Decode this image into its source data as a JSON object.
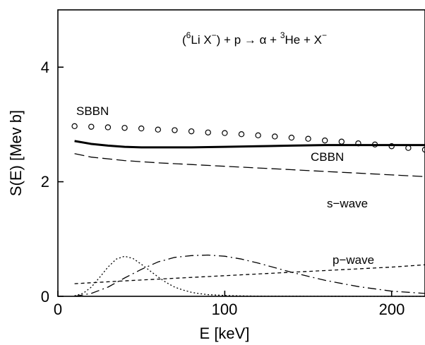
{
  "chart_data": {
    "type": "line",
    "title": "",
    "xlabel": "E [keV]",
    "ylabel": "S(E) [Mev b]",
    "xlim": [
      0,
      220
    ],
    "ylim": [
      0,
      5
    ],
    "x_ticks": [
      0,
      100,
      200
    ],
    "x_tick_labels": [
      "0",
      "100",
      "200"
    ],
    "y_ticks": [
      0,
      2,
      4
    ],
    "y_tick_labels": [
      "0",
      "2",
      "4"
    ],
    "grid": false,
    "reaction": {
      "pre": "(",
      "sup1": "6",
      "mid1": "Li X",
      "sup2": "−",
      "mid2": ") + p  →  α + ",
      "sup3": "3",
      "tail": "He + X",
      "sup4": "−"
    },
    "series": [
      {
        "name": "SBBN",
        "style": "circles",
        "color": "#000000",
        "x": [
          10,
          20,
          30,
          40,
          50,
          60,
          70,
          80,
          90,
          100,
          110,
          120,
          130,
          140,
          150,
          160,
          170,
          180,
          190,
          200,
          210,
          220
        ],
        "y": [
          2.97,
          2.96,
          2.95,
          2.94,
          2.93,
          2.91,
          2.9,
          2.88,
          2.86,
          2.85,
          2.83,
          2.81,
          2.79,
          2.77,
          2.75,
          2.72,
          2.7,
          2.67,
          2.65,
          2.62,
          2.59,
          2.56
        ]
      },
      {
        "name": "CBBN",
        "style": "solid-bold",
        "color": "#000000",
        "x": [
          10,
          20,
          30,
          40,
          50,
          60,
          80,
          100,
          120,
          140,
          160,
          180,
          200,
          220
        ],
        "y": [
          2.71,
          2.66,
          2.63,
          2.61,
          2.6,
          2.6,
          2.6,
          2.61,
          2.62,
          2.63,
          2.64,
          2.64,
          2.64,
          2.64
        ]
      },
      {
        "name": "s−wave",
        "style": "dashed",
        "color": "#000000",
        "x": [
          10,
          20,
          40,
          60,
          80,
          100,
          120,
          140,
          160,
          180,
          200,
          220
        ],
        "y": [
          2.49,
          2.43,
          2.37,
          2.33,
          2.3,
          2.27,
          2.24,
          2.21,
          2.18,
          2.15,
          2.12,
          2.09
        ]
      },
      {
        "name": "p−wave",
        "style": "short-dashed",
        "color": "#000000",
        "x": [
          10,
          40,
          80,
          120,
          160,
          200,
          220
        ],
        "y": [
          0.22,
          0.27,
          0.33,
          0.39,
          0.45,
          0.51,
          0.55
        ]
      },
      {
        "name": "",
        "style": "dotted",
        "color": "#000000",
        "x": [
          10,
          15,
          20,
          25,
          30,
          35,
          40,
          45,
          50,
          55,
          60,
          65,
          70,
          75,
          80,
          85,
          90,
          100,
          110,
          120,
          140,
          160,
          180,
          200,
          220
        ],
        "y": [
          0.01,
          0.05,
          0.16,
          0.33,
          0.51,
          0.65,
          0.7,
          0.66,
          0.56,
          0.45,
          0.34,
          0.24,
          0.16,
          0.11,
          0.07,
          0.045,
          0.03,
          0.015,
          0.008,
          0.004,
          0.002,
          0.001,
          0.0,
          0.0,
          0.0
        ]
      },
      {
        "name": "",
        "style": "dash-dot",
        "color": "#000000",
        "x": [
          10,
          20,
          30,
          40,
          50,
          60,
          70,
          80,
          90,
          100,
          110,
          120,
          140,
          160,
          180,
          200,
          220
        ],
        "y": [
          0.0,
          0.05,
          0.16,
          0.32,
          0.47,
          0.6,
          0.68,
          0.71,
          0.72,
          0.7,
          0.65,
          0.58,
          0.42,
          0.28,
          0.17,
          0.09,
          0.05
        ]
      }
    ],
    "labels": [
      "SBBN",
      "CBBN",
      "s−wave",
      "p−wave"
    ]
  }
}
